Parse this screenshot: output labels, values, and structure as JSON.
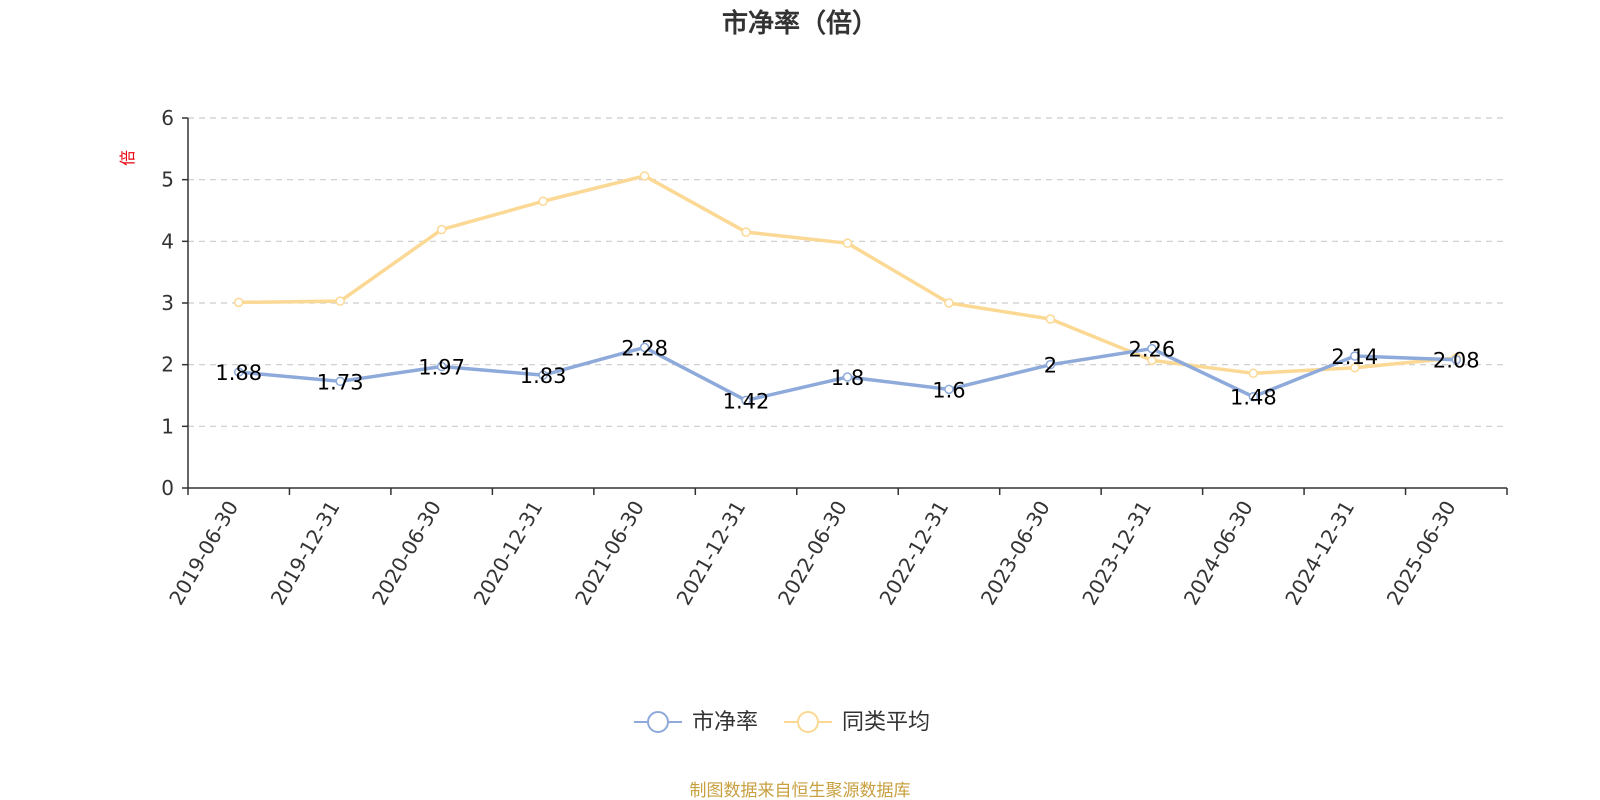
{
  "colors": {
    "series_pb": "#8eaadb",
    "series_avg": "#fbd995",
    "source_text": "#c8a040",
    "ylabel": "#e8000b"
  },
  "chart_data": {
    "type": "line",
    "title": "市净率（倍）",
    "ylabel": "倍",
    "xlabel": "",
    "ylim": [
      0,
      6
    ],
    "yticks": [
      0,
      1,
      2,
      3,
      4,
      5,
      6
    ],
    "grid": true,
    "legend_position": "bottom",
    "categories": [
      "2019-06-30",
      "2019-12-31",
      "2020-06-30",
      "2020-12-31",
      "2021-06-30",
      "2021-12-31",
      "2022-06-30",
      "2022-12-31",
      "2023-06-30",
      "2023-12-31",
      "2024-06-30",
      "2024-12-31",
      "2025-06-30"
    ],
    "series": [
      {
        "name": "市净率",
        "values": [
          1.88,
          1.73,
          1.97,
          1.83,
          2.28,
          1.42,
          1.8,
          1.6,
          2,
          2.26,
          1.48,
          2.14,
          2.08
        ],
        "show_labels": true
      },
      {
        "name": "同类平均",
        "values": [
          3.01,
          3.03,
          4.19,
          4.65,
          5.06,
          4.15,
          3.97,
          3.0,
          2.74,
          2.07,
          1.86,
          1.95,
          2.11
        ],
        "show_labels": false
      }
    ],
    "source": "制图数据来自恒生聚源数据库"
  }
}
